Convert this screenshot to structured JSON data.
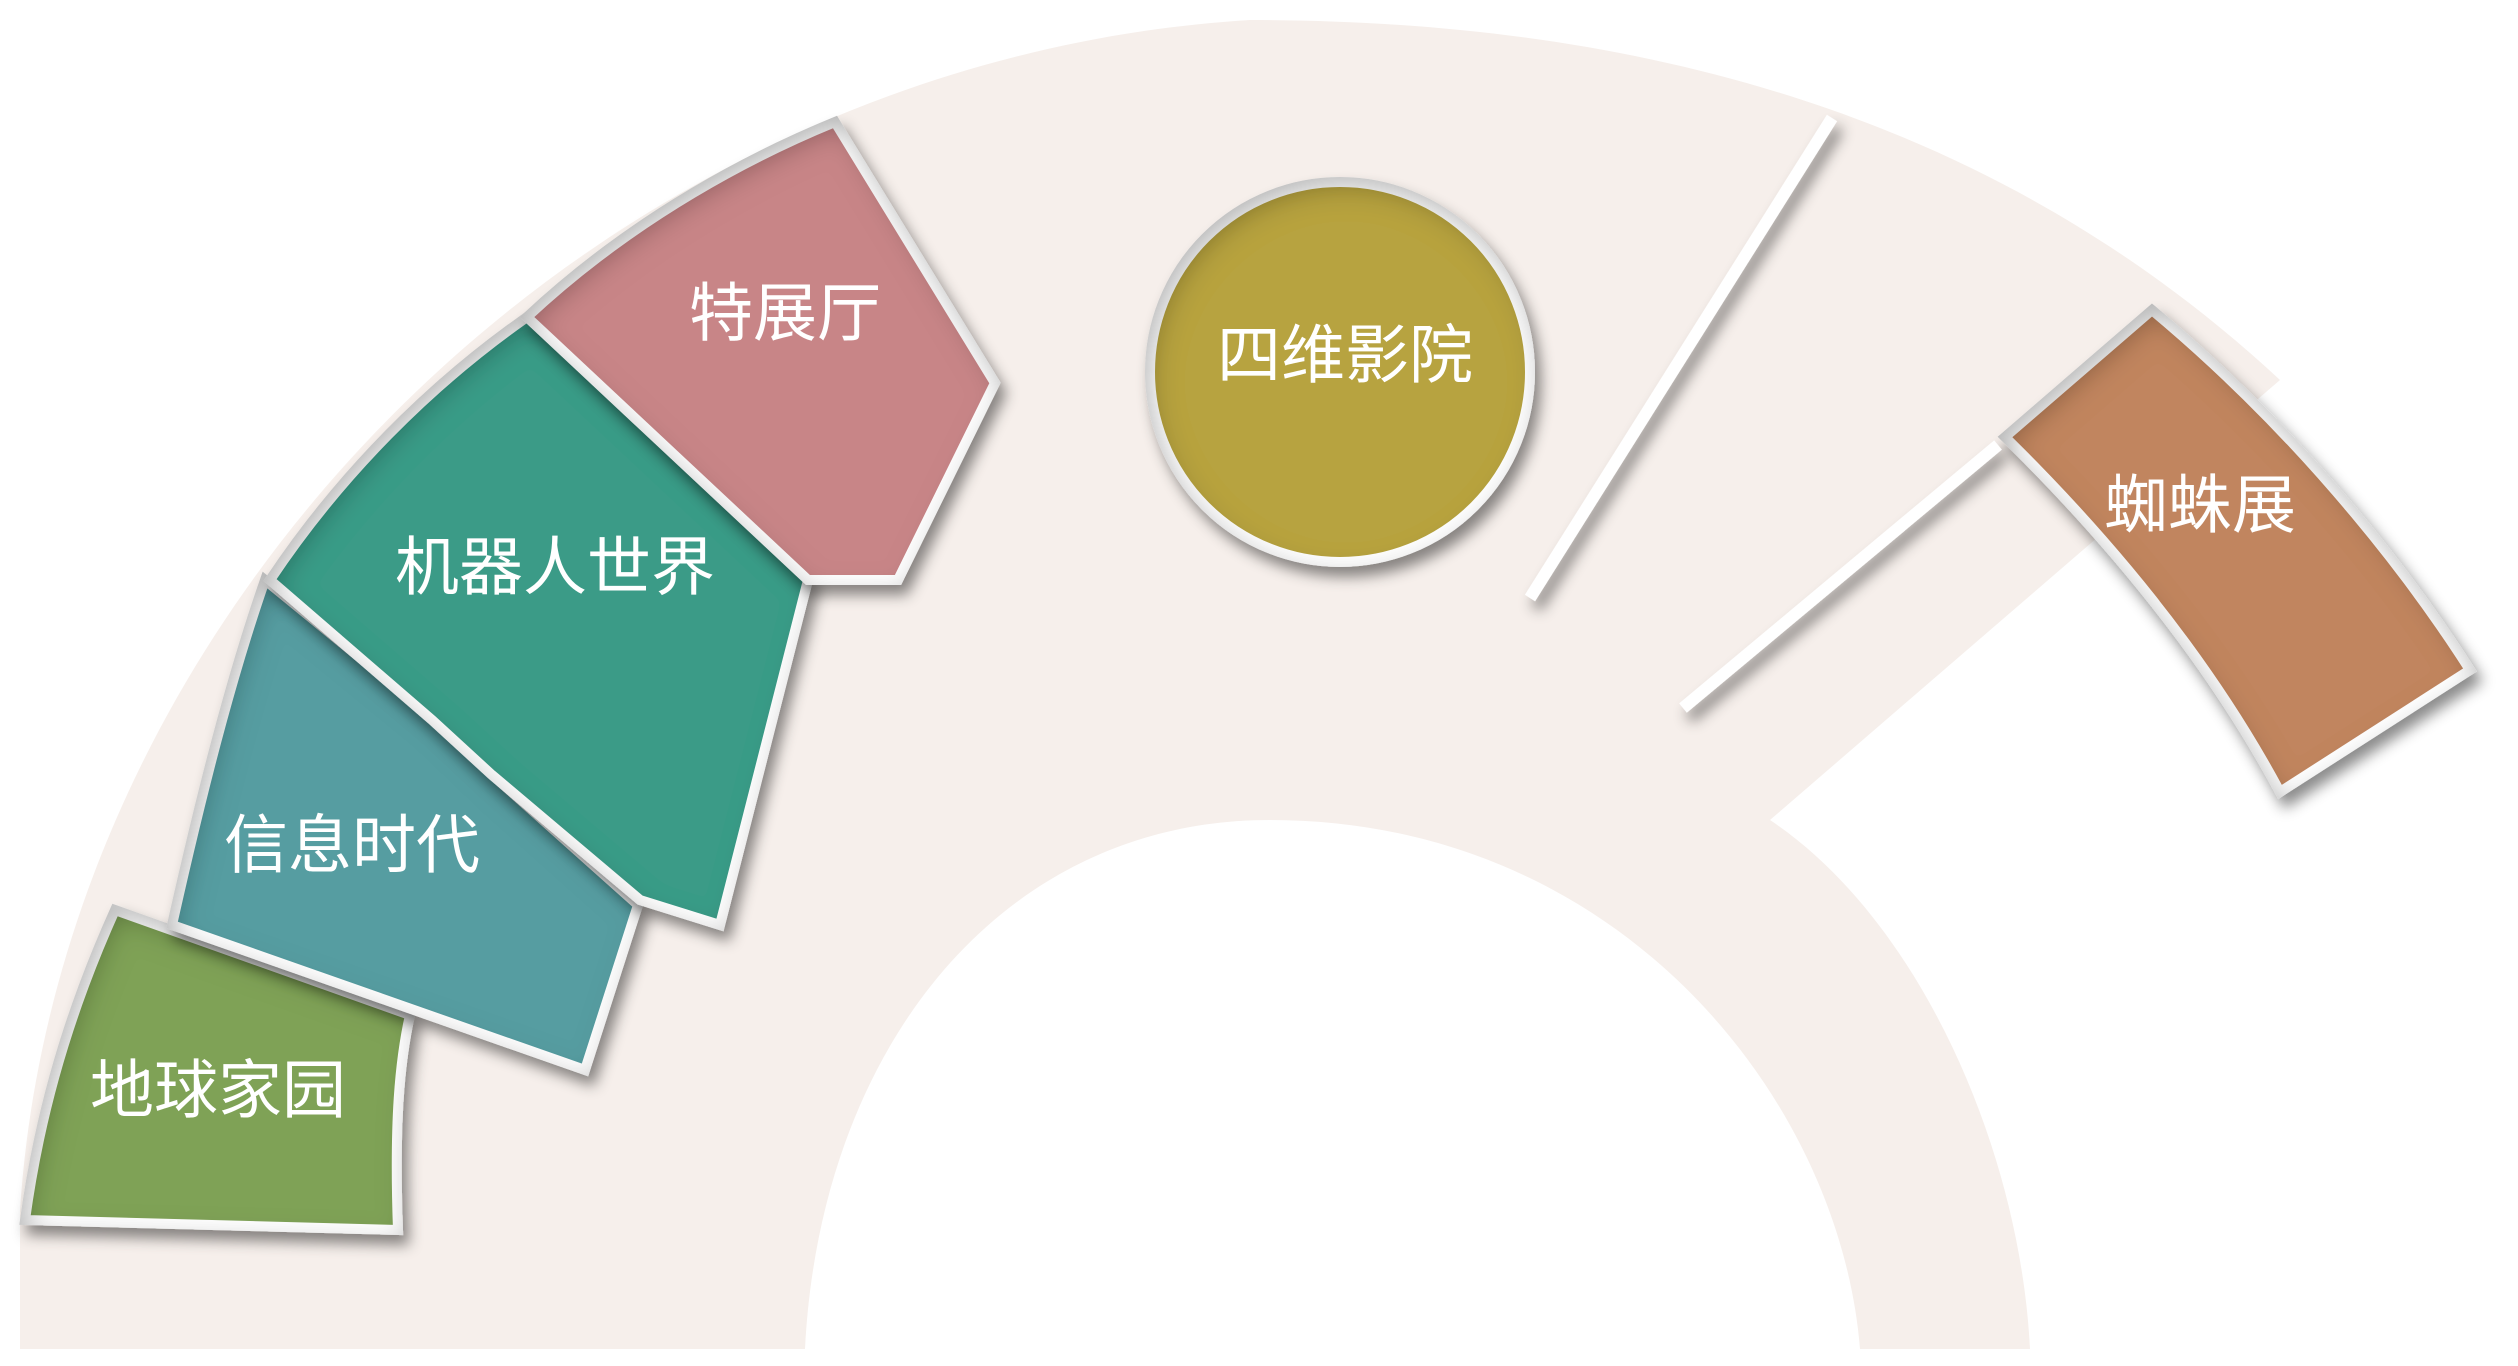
{
  "exhibits": [
    {
      "label": "地球家园",
      "color": "#7fa256"
    },
    {
      "label": "信息时代",
      "color": "#579da1"
    },
    {
      "label": "机器人世界",
      "color": "#3a9b87"
    },
    {
      "label": "特展厅",
      "color": "#c88587"
    },
    {
      "label": "四维影院",
      "color": "#b7a341"
    },
    {
      "label": "蜘蛛展",
      "color": "#c1855f"
    }
  ],
  "colors": {
    "band": "#f6efeb",
    "outline": "#ffffff"
  }
}
